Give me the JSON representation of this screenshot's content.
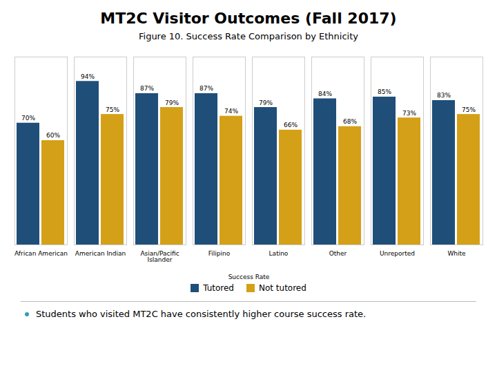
{
  "chart_data": {
    "type": "bar",
    "title": "MT2C Visitor Outcomes (Fall 2017)",
    "subtitle": "Figure 10.  Success Rate Comparison by Ethnicity",
    "annotations": [
      "Students who visited MT2C have consistently higher course success rate."
    ],
    "categories": [
      "African American",
      "American Indian",
      "Asian/Pacific\nIslander",
      "Filipino",
      "Latino",
      "Other",
      "Unreported",
      "White"
    ],
    "series": [
      {
        "name": "Tutored",
        "color": "#1F4E79",
        "values": [
          70,
          94,
          87,
          87,
          79,
          84,
          85,
          83
        ],
        "value_labels": [
          "70%",
          "94%",
          "87%",
          "87%",
          "79%",
          "84%",
          "85%",
          "83%"
        ]
      },
      {
        "name": "Not tutored",
        "color": "#D4A017",
        "values": [
          60,
          75,
          79,
          74,
          66,
          68,
          73,
          75
        ],
        "value_labels": [
          "60%",
          "75%",
          "79%",
          "74%",
          "66%",
          "68%",
          "73%",
          "75%"
        ]
      }
    ],
    "xlabel": "Success Rate",
    "ylim": [
      0,
      108
    ],
    "yticks": [],
    "tick_labels": "x",
    "data_labels": true,
    "legend": "bottom",
    "grid": false
  }
}
